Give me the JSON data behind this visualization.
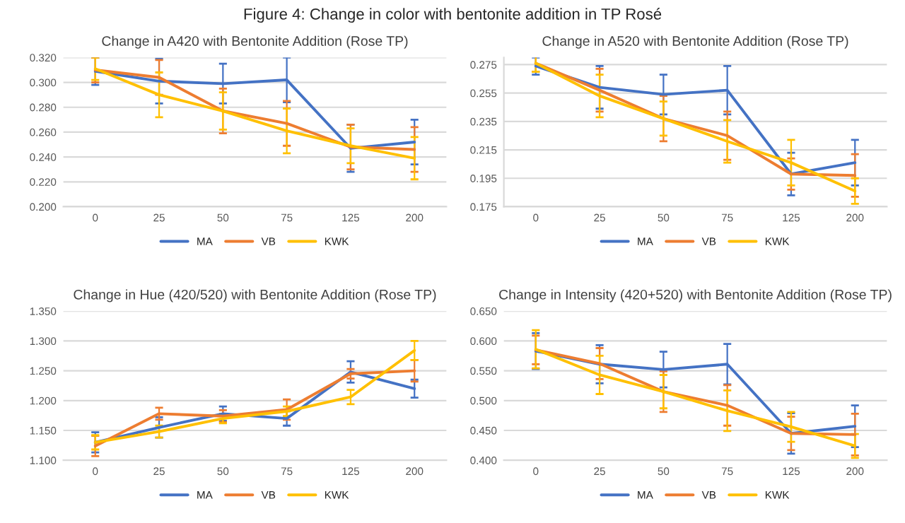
{
  "chart_data": [
    {
      "type": "line",
      "title": "Change in A420 with Bentonite Addition (Rose TP)",
      "annotations": [
        "Figure 4: Change in color with bentonite addition in TP Rosé"
      ],
      "categories": [
        "0",
        "25",
        "50",
        "75",
        "125",
        "200"
      ],
      "ylim": [
        0.2,
        0.32
      ],
      "yticks": [
        {
          "value": 0.2,
          "label": "0.200"
        },
        {
          "value": 0.22,
          "label": "0.220"
        },
        {
          "value": 0.24,
          "label": "0.240"
        },
        {
          "value": 0.26,
          "label": "0.260"
        },
        {
          "value": 0.28,
          "label": "0.280"
        },
        {
          "value": 0.3,
          "label": "0.300"
        },
        {
          "value": 0.32,
          "label": "0.320"
        }
      ],
      "grid": "y",
      "legend": "bottom",
      "series": [
        {
          "name": "MA",
          "color": "#4472c4",
          "values": [
            0.309,
            0.301,
            0.299,
            0.302,
            0.247,
            0.252
          ],
          "errors": [
            0.011,
            0.018,
            0.016,
            0.018,
            0.019,
            0.018
          ]
        },
        {
          "name": "VB",
          "color": "#ed7d31",
          "values": [
            0.31,
            0.304,
            0.277,
            0.267,
            0.248,
            0.246
          ],
          "errors": [
            0.01,
            0.014,
            0.018,
            0.018,
            0.018,
            0.018
          ]
        },
        {
          "name": "KWK",
          "color": "#ffc000",
          "values": [
            0.311,
            0.29,
            0.277,
            0.261,
            0.249,
            0.239
          ],
          "errors": [
            0.009,
            0.018,
            0.015,
            0.018,
            0.014,
            0.017
          ]
        }
      ]
    },
    {
      "type": "line",
      "title": "Change in A520 with Bentonite Addition (Rose TP)",
      "categories": [
        "0",
        "25",
        "50",
        "75",
        "125",
        "200"
      ],
      "ylim": [
        0.175,
        0.28
      ],
      "yticks": [
        0.175,
        0.195,
        0.215,
        0.235,
        0.255,
        0.275
      ],
      "grid": "y",
      "legend": "bottom",
      "series": [
        {
          "name": "MA",
          "color": "#4472c4",
          "values": [
            0.274,
            0.259,
            0.254,
            0.257,
            0.198,
            0.206
          ],
          "errors": [
            0.006,
            0.015,
            0.014,
            0.017,
            0.015,
            0.016
          ]
        },
        {
          "name": "VB",
          "color": "#ed7d31",
          "values": [
            0.276,
            0.257,
            0.237,
            0.225,
            0.198,
            0.197
          ],
          "errors": [
            0.006,
            0.015,
            0.016,
            0.017,
            0.011,
            0.015
          ]
        },
        {
          "name": "KWK",
          "color": "#ffc000",
          "values": [
            0.276,
            0.253,
            0.237,
            0.221,
            0.206,
            0.186
          ],
          "errors": [
            0.006,
            0.015,
            0.012,
            0.015,
            0.016,
            0.009
          ]
        }
      ]
    },
    {
      "type": "line",
      "title": "Change in Hue (420/520) with Bentonite Addition (Rose TP)",
      "categories": [
        "0",
        "25",
        "50",
        "75",
        "125",
        "200"
      ],
      "ylim": [
        1.1,
        1.35
      ],
      "yticks": [
        {
          "value": 1.1,
          "label": "1.100"
        },
        {
          "value": 1.15,
          "label": "1.150"
        },
        {
          "value": 1.2,
          "label": "1.200"
        },
        {
          "value": 1.25,
          "label": "1.250"
        },
        {
          "value": 1.3,
          "label": "1.300"
        },
        {
          "value": 1.35,
          "label": "1.350"
        }
      ],
      "grid": "y",
      "legend": "bottom",
      "series": [
        {
          "name": "MA",
          "color": "#4472c4",
          "values": [
            1.13,
            1.155,
            1.178,
            1.17,
            1.248,
            1.22
          ],
          "errors": [
            0.017,
            0.017,
            0.012,
            0.012,
            0.018,
            0.015
          ]
        },
        {
          "name": "VB",
          "color": "#ed7d31",
          "values": [
            1.124,
            1.178,
            1.174,
            1.185,
            1.245,
            1.25
          ],
          "errors": [
            0.017,
            0.01,
            0.01,
            0.017,
            0.008,
            0.018
          ]
        },
        {
          "name": "KWK",
          "color": "#ffc000",
          "values": [
            1.13,
            1.148,
            1.17,
            1.182,
            1.206,
            1.284
          ],
          "errors": [
            0.012,
            0.01,
            0.008,
            0.008,
            0.012,
            0.016
          ]
        }
      ]
    },
    {
      "type": "line",
      "title": "Change in Intensity (420+520) with Bentonite Addition (Rose TP)",
      "categories": [
        "0",
        "25",
        "50",
        "75",
        "125",
        "200"
      ],
      "ylim": [
        0.4,
        0.65
      ],
      "yticks": [
        {
          "value": 0.4,
          "label": "0.400"
        },
        {
          "value": 0.45,
          "label": "0.450"
        },
        {
          "value": 0.5,
          "label": "0.500"
        },
        {
          "value": 0.55,
          "label": "0.550"
        },
        {
          "value": 0.6,
          "label": "0.600"
        },
        {
          "value": 0.65,
          "label": "0.650"
        }
      ],
      "grid": "y",
      "legend": "bottom",
      "series": [
        {
          "name": "MA",
          "color": "#4472c4",
          "values": [
            0.583,
            0.561,
            0.552,
            0.561,
            0.445,
            0.457
          ],
          "errors": [
            0.03,
            0.032,
            0.03,
            0.034,
            0.034,
            0.035
          ]
        },
        {
          "name": "VB",
          "color": "#ed7d31",
          "values": [
            0.585,
            0.562,
            0.515,
            0.492,
            0.445,
            0.443
          ],
          "errors": [
            0.024,
            0.026,
            0.034,
            0.034,
            0.028,
            0.035
          ]
        },
        {
          "name": "KWK",
          "color": "#ffc000",
          "values": [
            0.586,
            0.543,
            0.515,
            0.483,
            0.456,
            0.424
          ],
          "errors": [
            0.032,
            0.032,
            0.028,
            0.034,
            0.025,
            0.02
          ]
        }
      ]
    }
  ]
}
